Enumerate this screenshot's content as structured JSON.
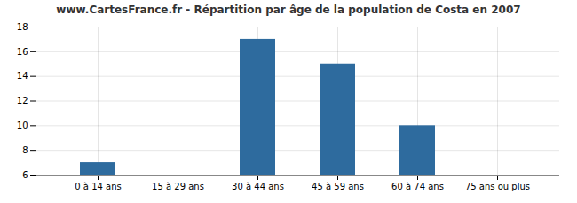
{
  "chart_data": {
    "type": "bar",
    "title": "www.CartesFrance.fr - Répartition par âge de la population de Costa en 2007",
    "categories": [
      "0 à 14 ans",
      "15 à 29 ans",
      "30 à 44 ans",
      "45 à 59 ans",
      "60 à 74 ans",
      "75 ans ou plus"
    ],
    "values": [
      7,
      6,
      17,
      15,
      10,
      6
    ],
    "color": "#2e6b9e",
    "ylim": [
      6,
      18
    ],
    "yticks": [
      6,
      8,
      10,
      12,
      14,
      16,
      18
    ],
    "grid": true
  }
}
